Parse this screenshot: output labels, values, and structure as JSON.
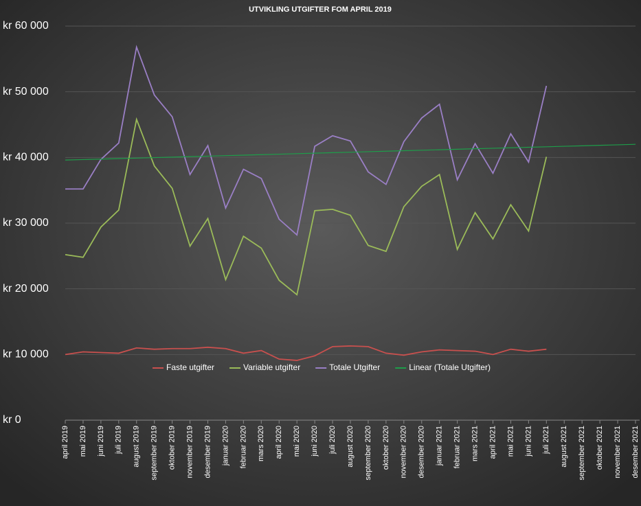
{
  "chart_data": {
    "type": "line",
    "title": "UTVIKLING UTGIFTER FOM APRIL 2019",
    "categories": [
      "april 2019",
      "mai 2019",
      "juni 2019",
      "juli 2019",
      "august 2019",
      "september 2019",
      "oktober 2019",
      "november 2019",
      "desember 2019",
      "januar 2020",
      "februar 2020",
      "mars 2020",
      "april 2020",
      "mai 2020",
      "juni 2020",
      "juli 2020",
      "august 2020",
      "september 2020",
      "oktober 2020",
      "november 2020",
      "desember 2020",
      "januar 2021",
      "februar 2021",
      "mars 2021",
      "april 2021",
      "mai 2021",
      "juni 2021",
      "juli 2021",
      "august 2021",
      "september 2021",
      "oktober 2021",
      "november 2021",
      "desember 2021"
    ],
    "series": [
      {
        "name": "Faste utgifter",
        "color": "#c9504e",
        "values": [
          10000,
          10400,
          10300,
          10200,
          11000,
          10800,
          10900,
          10900,
          11100,
          10900,
          10200,
          10600,
          9300,
          9100,
          9800,
          11200,
          11300,
          11200,
          10200,
          9900,
          10400,
          10700,
          10600,
          10500,
          10000,
          10800,
          10500,
          10800,
          null,
          null,
          null,
          null,
          null
        ]
      },
      {
        "name": "Variable utgifter",
        "color": "#9bbb59",
        "values": [
          25200,
          24800,
          29400,
          32000,
          45800,
          38700,
          35300,
          26500,
          30700,
          21400,
          28000,
          26200,
          21300,
          19100,
          31900,
          32100,
          31200,
          26600,
          25700,
          32500,
          35600,
          37400,
          26000,
          31600,
          27600,
          32800,
          28800,
          40100,
          null,
          null,
          null,
          null,
          null
        ]
      },
      {
        "name": "Totale Utgifter",
        "color": "#9a7fc5",
        "values": [
          35200,
          35200,
          39700,
          42200,
          56800,
          49500,
          46200,
          37400,
          41800,
          32300,
          38200,
          36800,
          30600,
          28200,
          41700,
          43300,
          42500,
          37800,
          35900,
          42400,
          46000,
          48100,
          36600,
          42100,
          37600,
          43600,
          39300,
          50900,
          null,
          null,
          null,
          null,
          null
        ]
      },
      {
        "name": "Linear (Totale Utgifter)",
        "color": "#1e9e4a",
        "values": [
          39600,
          39675,
          39750,
          39825,
          39900,
          39975,
          40050,
          40125,
          40200,
          40275,
          40350,
          40425,
          40500,
          40575,
          40650,
          40725,
          40800,
          40875,
          40950,
          41025,
          41100,
          41175,
          41250,
          41325,
          41400,
          41475,
          41550,
          41625,
          41700,
          41775,
          41850,
          41925,
          42000
        ]
      }
    ],
    "ylim": [
      0,
      60000
    ],
    "yticks": [
      {
        "value": 0,
        "label": "kr 0"
      },
      {
        "value": 10000,
        "label": "kr 10 000"
      },
      {
        "value": 20000,
        "label": "kr 20 000"
      },
      {
        "value": 30000,
        "label": "kr 30 000"
      },
      {
        "value": 40000,
        "label": "kr 40 000"
      },
      {
        "value": 50000,
        "label": "kr 50 000"
      },
      {
        "value": 60000,
        "label": "kr 60 000"
      }
    ],
    "grid": true
  }
}
